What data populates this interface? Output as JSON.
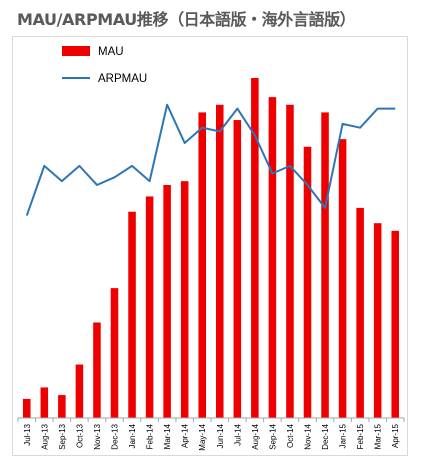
{
  "title": "MAU/ARPMAU推移（日本語版・海外言語版）",
  "colors": {
    "bar": "#ee0000",
    "line": "#2e75b6",
    "axis": "#a6a6a6",
    "frame": "#d9d9d9"
  },
  "chart_data": {
    "type": "bar",
    "title": "MAU/ARPMAU推移（日本語版・海外言語版）",
    "categories": [
      "Jul-13",
      "Aug-13",
      "Sep-13",
      "Oct-13",
      "Nov-13",
      "Dec-13",
      "Jan-14",
      "Feb-14",
      "Mar-14",
      "Apr-14",
      "May-14",
      "Jun-14",
      "Jul-14",
      "Aug-14",
      "Sep-14",
      "Oct-14",
      "Nov-14",
      "Dec-14",
      "Jan-15",
      "Feb-15",
      "Mar-15",
      "Apr-15"
    ],
    "legend": {
      "position": "top-left",
      "entries": [
        "MAU",
        "ARPMAU"
      ]
    },
    "series": [
      {
        "name": "MAU",
        "type": "bar",
        "values": [
          5,
          8,
          6,
          14,
          25,
          34,
          54,
          58,
          61,
          62,
          80,
          82,
          78,
          89,
          84,
          82,
          71,
          80,
          73,
          55,
          51,
          49
        ]
      },
      {
        "name": "ARPMAU",
        "type": "line",
        "values": [
          53,
          66,
          62,
          66,
          61,
          63,
          66,
          62,
          82,
          72,
          76,
          75,
          81,
          74,
          64,
          66,
          61,
          55,
          77,
          76,
          81,
          81
        ]
      }
    ],
    "ylim": [
      0,
      100
    ],
    "y2lim": [
      0,
      100
    ],
    "grid": false,
    "xlabel": "",
    "ylabel": ""
  }
}
